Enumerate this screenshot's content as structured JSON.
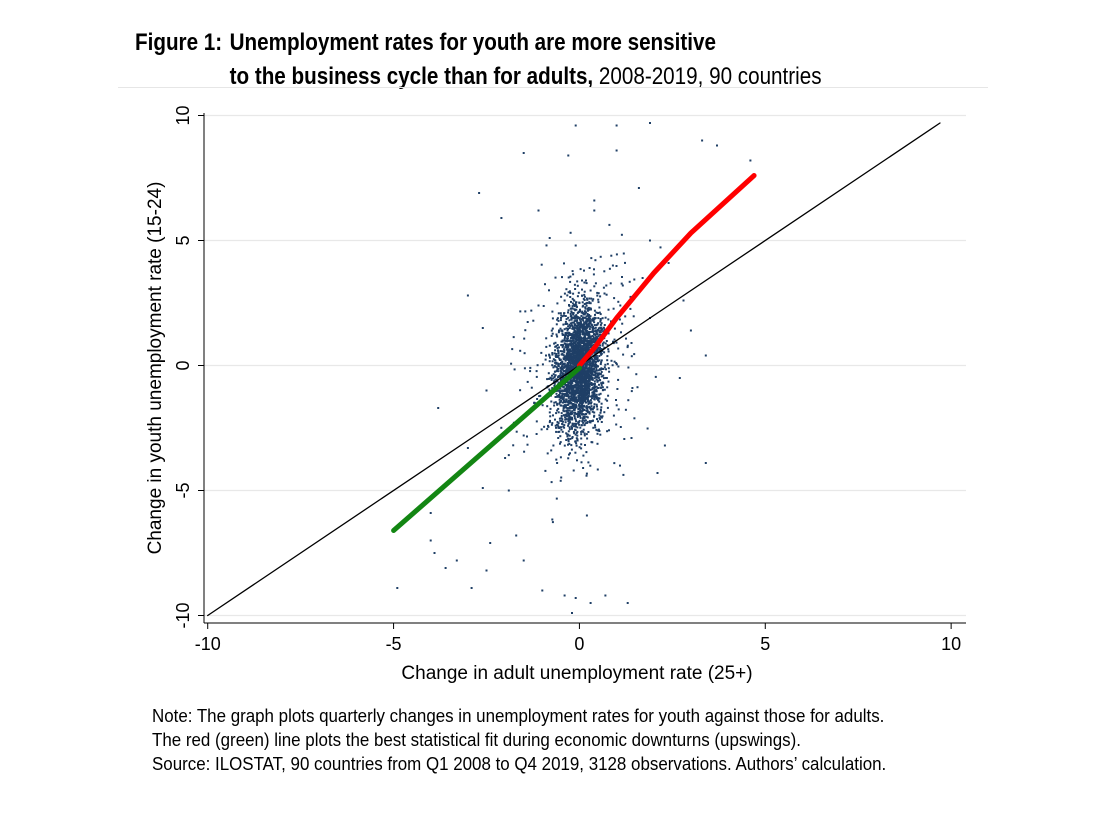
{
  "title": {
    "figure_label": "Figure 1:",
    "line1": "Unemployment rates for youth are more sensitive",
    "line2_bold": "to the business cycle than for adults,",
    "line2_regular": " 2008-2019, 90 countries"
  },
  "notes": [
    "Note: The graph plots quarterly changes in unemployment rates for youth against those for adults.",
    "The red (green) line plots the best statistical fit during economic downturns (upswings).",
    "Source: ILOSTAT, 90 countries from Q1 2008 to Q4 2019, 3128 observations. Authors’ calculation."
  ],
  "chart_data": {
    "type": "scatter",
    "xlabel": "Change in adult unemployment rate (25+)",
    "ylabel": "Change in youth unemployment rate (15-24)",
    "xlim": [
      -10.1,
      10.4
    ],
    "ylim": [
      -10.3,
      10.1
    ],
    "xticks": [
      "-10",
      "-5",
      "0",
      "5",
      "10"
    ],
    "yticks": [
      "-10",
      "-5",
      "0",
      "5",
      "10"
    ],
    "grid": "horizontal",
    "colors": {
      "points": "#1f3f66",
      "downturn_fit": "#ff0000",
      "upswing_fit": "#138613",
      "reference_line": "#000000",
      "gridline": "#e8e8e8"
    },
    "series": [
      {
        "type": "scatter",
        "observations": 3128,
        "points": [
          [
            0.0,
            0.8
          ],
          [
            0.2,
            -0.5
          ],
          [
            -0.3,
            1.2
          ],
          [
            0.5,
            2.1
          ],
          [
            -0.6,
            -1.8
          ],
          [
            0.8,
            1.5
          ],
          [
            -0.2,
            -2.5
          ],
          [
            0.3,
            3.0
          ],
          [
            -0.9,
            0.4
          ],
          [
            1.1,
            2.4
          ],
          [
            -1.2,
            -1.5
          ],
          [
            0.6,
            -0.8
          ],
          [
            -0.4,
            2.6
          ],
          [
            1.4,
            0.9
          ],
          [
            -0.7,
            -3.2
          ],
          [
            0.9,
            4.0
          ],
          [
            -1.5,
            -2.8
          ],
          [
            1.7,
            3.5
          ],
          [
            -0.1,
            4.8
          ],
          [
            0.1,
            -4.1
          ],
          [
            2.1,
            3.9
          ],
          [
            -2.0,
            -3.7
          ],
          [
            1.9,
            5.0
          ],
          [
            2.4,
            4.1
          ],
          [
            -1.9,
            -5.0
          ],
          [
            0.4,
            6.2
          ],
          [
            -0.8,
            5.1
          ],
          [
            2.8,
            2.6
          ],
          [
            3.0,
            1.4
          ],
          [
            3.4,
            0.4
          ],
          [
            3.3,
            9.0
          ],
          [
            3.7,
            8.8
          ],
          [
            4.6,
            8.2
          ],
          [
            1.9,
            9.7
          ],
          [
            1.0,
            9.6
          ],
          [
            -0.1,
            9.6
          ],
          [
            -0.3,
            8.4
          ],
          [
            -1.5,
            8.5
          ],
          [
            -2.7,
            6.9
          ],
          [
            -2.1,
            5.9
          ],
          [
            -3.0,
            2.8
          ],
          [
            -2.6,
            1.5
          ],
          [
            -2.5,
            -1.0
          ],
          [
            -3.8,
            -1.7
          ],
          [
            -3.0,
            -3.3
          ],
          [
            -2.6,
            -4.9
          ],
          [
            -2.4,
            -7.1
          ],
          [
            -2.5,
            -8.2
          ],
          [
            -1.7,
            -6.8
          ],
          [
            -1.5,
            -7.8
          ],
          [
            -1.0,
            -9.0
          ],
          [
            -0.4,
            -9.2
          ],
          [
            -0.1,
            -9.3
          ],
          [
            0.3,
            -9.5
          ],
          [
            -0.2,
            -9.9
          ],
          [
            0.7,
            -9.2
          ],
          [
            1.3,
            -9.5
          ],
          [
            2.3,
            -3.2
          ],
          [
            2.1,
            -4.3
          ],
          [
            1.4,
            -2.9
          ],
          [
            2.7,
            -0.5
          ],
          [
            3.4,
            -3.9
          ],
          [
            -4.0,
            -5.9
          ],
          [
            -3.9,
            -7.5
          ],
          [
            -3.6,
            -8.1
          ],
          [
            -4.9,
            -8.9
          ],
          [
            -3.3,
            -7.8
          ],
          [
            -4.0,
            -7.0
          ],
          [
            -2.9,
            -8.9
          ],
          [
            -0.6,
            -3.9
          ],
          [
            1.6,
            7.1
          ],
          [
            1.0,
            8.6
          ],
          [
            0.4,
            6.6
          ],
          [
            -1.1,
            6.2
          ],
          [
            1.9,
            1.9
          ],
          [
            0.2,
            -6.0
          ]
        ]
      },
      {
        "name": "",
        "type": "line",
        "role": "reference 45-degree line",
        "x": [
          -10,
          9.7
        ],
        "y": [
          -10,
          9.7
        ]
      },
      {
        "name": "",
        "type": "line",
        "role": "downturn fit (red)",
        "x": [
          0,
          0.4,
          1.0,
          2.0,
          3.0,
          4.7
        ],
        "y": [
          0,
          0.7,
          1.9,
          3.7,
          5.3,
          7.6
        ]
      },
      {
        "name": "",
        "type": "line",
        "role": "upswing fit (green)",
        "x": [
          -5,
          0
        ],
        "y": [
          -6.6,
          -0.1
        ]
      }
    ]
  }
}
